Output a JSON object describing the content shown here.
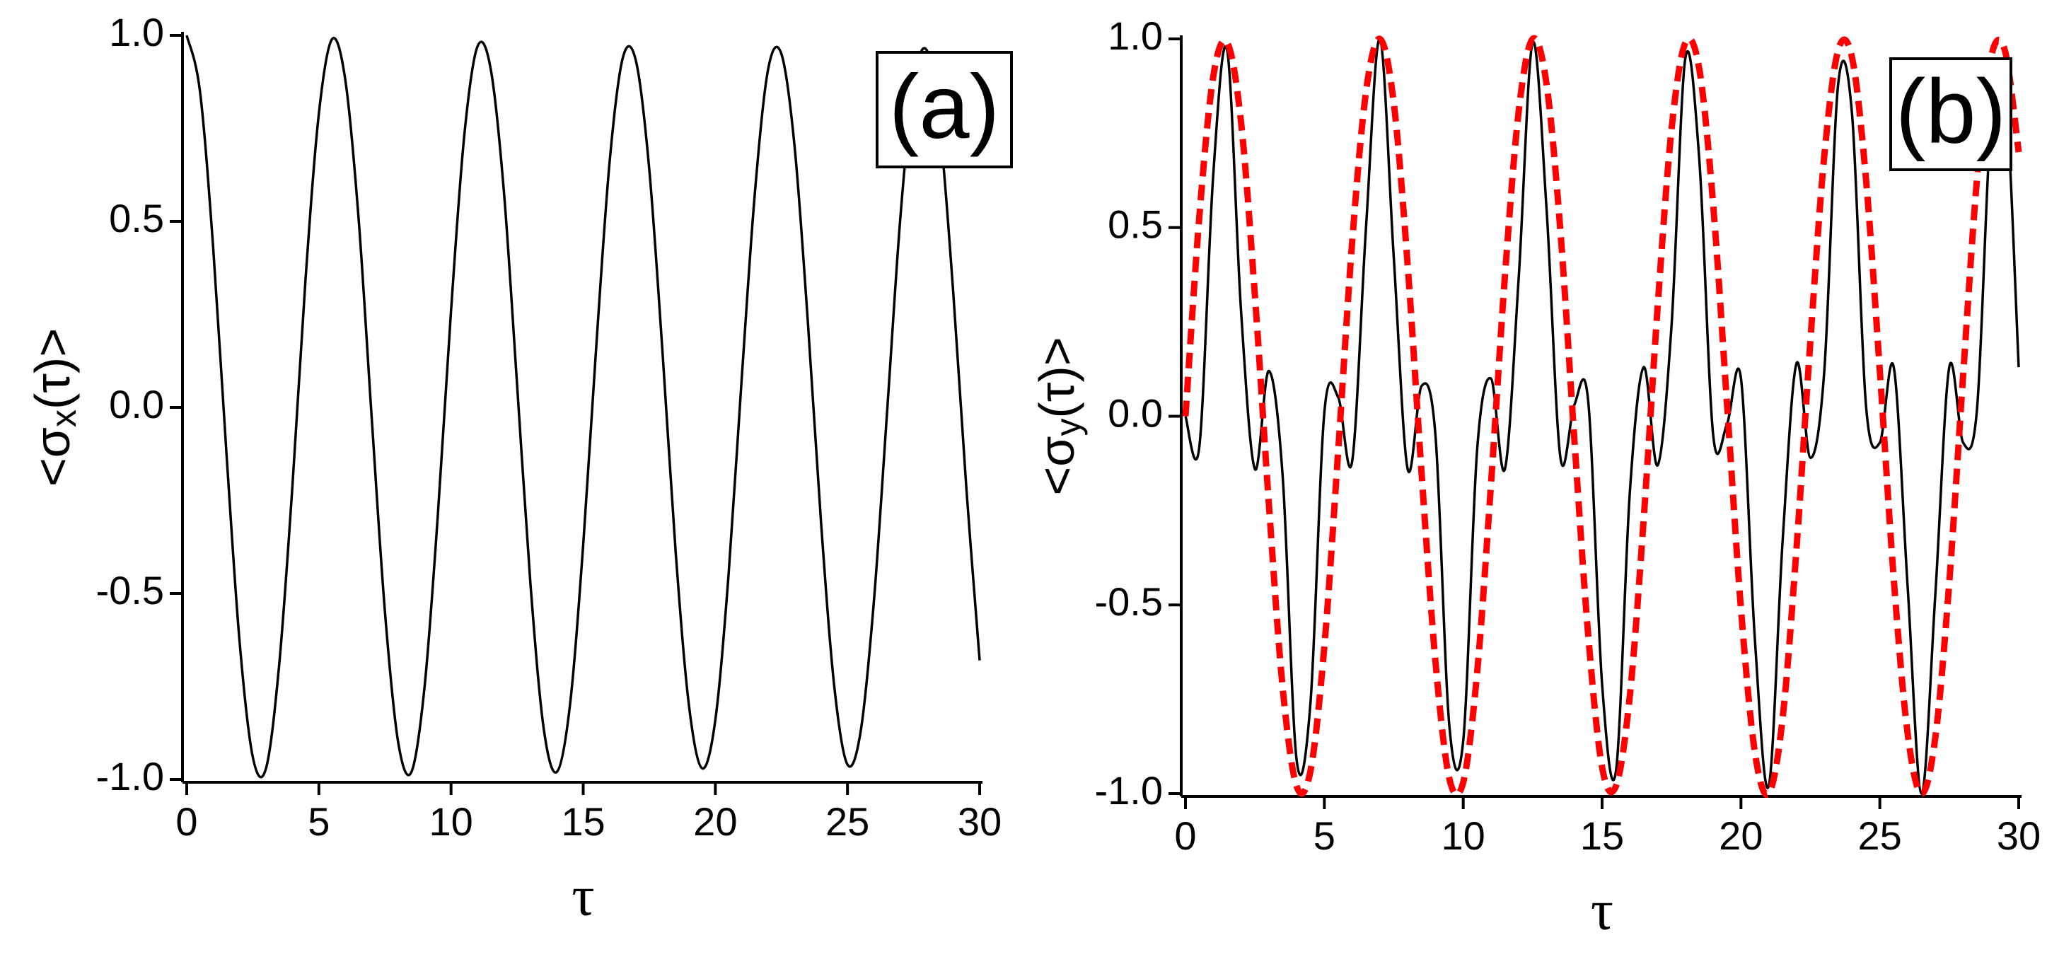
{
  "chart_data": [
    {
      "type": "line",
      "label": "(a)",
      "xlabel": "τ",
      "ylabel": [
        "<σ",
        "x",
        "(τ)>"
      ],
      "xlim": [
        0,
        30
      ],
      "xticks": [
        0,
        5,
        10,
        15,
        20,
        25,
        30
      ],
      "ylim": [
        -1,
        1
      ],
      "yticks": [
        {
          "value": -1,
          "label": "-1.0"
        },
        -0.5,
        {
          "value": 0,
          "label": "0.0"
        },
        0.5,
        {
          "value": 1,
          "label": "1.0"
        }
      ],
      "x": [
        0,
        0.5,
        1,
        1.5,
        2,
        2.5,
        3,
        3.5,
        4,
        4.5,
        5,
        5.5,
        6,
        6.5,
        7,
        7.5,
        8,
        8.5,
        9,
        9.5,
        10,
        10.5,
        11,
        11.5,
        12,
        12.5,
        13,
        13.5,
        14,
        14.5,
        15,
        15.5,
        16,
        16.5,
        17,
        17.5,
        18,
        18.5,
        19,
        19.5,
        20,
        20.5,
        21,
        21.5,
        22,
        22.5,
        23,
        23.5,
        24,
        24.5,
        25,
        25.5,
        26,
        26.5,
        27,
        27.5,
        28,
        28.5,
        29,
        29.5,
        30
      ],
      "series": [
        {
          "color": "#000000",
          "style": "solid",
          "values": [
            1.0,
            0.85,
            0.43,
            -0.12,
            -0.63,
            -0.94,
            -0.97,
            -0.69,
            -0.21,
            0.35,
            0.79,
            0.99,
            0.88,
            0.51,
            -0.03,
            -0.55,
            -0.9,
            -0.98,
            -0.75,
            -0.29,
            0.26,
            0.73,
            0.97,
            0.91,
            0.58,
            0.06,
            -0.47,
            -0.86,
            -0.98,
            -0.8,
            -0.37,
            0.17,
            0.66,
            0.94,
            0.93,
            0.64,
            0.15,
            -0.39,
            -0.8,
            -0.97,
            -0.84,
            -0.45,
            0.08,
            0.58,
            0.91,
            0.95,
            0.7,
            0.23,
            -0.31,
            -0.75,
            -0.96,
            -0.87,
            -0.52,
            -0.01,
            0.51,
            0.87,
            0.96,
            0.75,
            0.31,
            -0.22,
            -0.68
          ]
        }
      ]
    },
    {
      "type": "line",
      "label": "(b)",
      "xlabel": "τ",
      "ylabel": [
        "<σ",
        "y",
        "(τ)>"
      ],
      "xlim": [
        0,
        30
      ],
      "xticks": [
        0,
        5,
        10,
        15,
        20,
        25,
        30
      ],
      "ylim": [
        -1,
        1
      ],
      "yticks": [
        {
          "value": -1,
          "label": "-1.0"
        },
        -0.5,
        {
          "value": 0,
          "label": "0.0"
        },
        0.5,
        {
          "value": 1,
          "label": "1.0"
        }
      ],
      "x": [
        0,
        0.5,
        1,
        1.5,
        2,
        2.5,
        3,
        3.5,
        4,
        4.5,
        5,
        5.5,
        6,
        6.5,
        7,
        7.5,
        8,
        8.5,
        9,
        9.5,
        10,
        10.5,
        11,
        11.5,
        12,
        12.5,
        13,
        13.5,
        14,
        14.5,
        15,
        15.5,
        16,
        16.5,
        17,
        17.5,
        18,
        18.5,
        19,
        19.5,
        20,
        20.5,
        21,
        21.5,
        22,
        22.5,
        23,
        23.5,
        24,
        24.5,
        25,
        25.5,
        26,
        26.5,
        27,
        27.5,
        28,
        28.5,
        29,
        29.5,
        30
      ],
      "series": [
        {
          "color": "#000000",
          "style": "solid",
          "values": [
            0,
            -0.08,
            0.64,
            0.97,
            0.28,
            -0.14,
            0.12,
            -0.16,
            -0.91,
            -0.76,
            0.01,
            0.05,
            -0.12,
            0.5,
            1.0,
            0.42,
            -0.14,
            0.08,
            -0.05,
            -0.82,
            -0.86,
            -0.09,
            0.1,
            -0.14,
            0.37,
            0.99,
            0.55,
            -0.11,
            0.03,
            0.04,
            -0.71,
            -0.94,
            -0.2,
            0.13,
            -0.13,
            0.24,
            0.95,
            0.68,
            -0.05,
            -0.02,
            0.1,
            -0.59,
            -0.98,
            -0.33,
            0.14,
            -0.11,
            0.12,
            0.88,
            0.8,
            0.03,
            -0.07,
            0.13,
            -0.45,
            -1.0,
            -0.47,
            0.13,
            -0.07,
            0.02,
            0.78,
            0.89,
            0.13
          ]
        },
        {
          "color": "#ff0000",
          "style": "dashed",
          "values": [
            0,
            0.53,
            0.9,
            0.99,
            0.78,
            0.32,
            -0.23,
            -0.72,
            -0.98,
            -0.94,
            -0.61,
            -0.09,
            0.46,
            0.86,
            1.0,
            0.83,
            0.4,
            -0.15,
            -0.65,
            -0.96,
            -0.97,
            -0.68,
            -0.18,
            0.37,
            0.81,
            1.0,
            0.88,
            0.49,
            -0.06,
            -0.58,
            -0.93,
            -0.98,
            -0.74,
            -0.27,
            0.29,
            0.76,
            0.99,
            0.92,
            0.56,
            0.03,
            -0.51,
            -0.89,
            -1.0,
            -0.8,
            -0.35,
            0.2,
            0.69,
            0.97,
            0.95,
            0.63,
            0.12,
            -0.43,
            -0.84,
            -1.0,
            -0.85,
            -0.44,
            0.11,
            0.63,
            0.95,
            0.97,
            0.7
          ]
        }
      ]
    }
  ]
}
